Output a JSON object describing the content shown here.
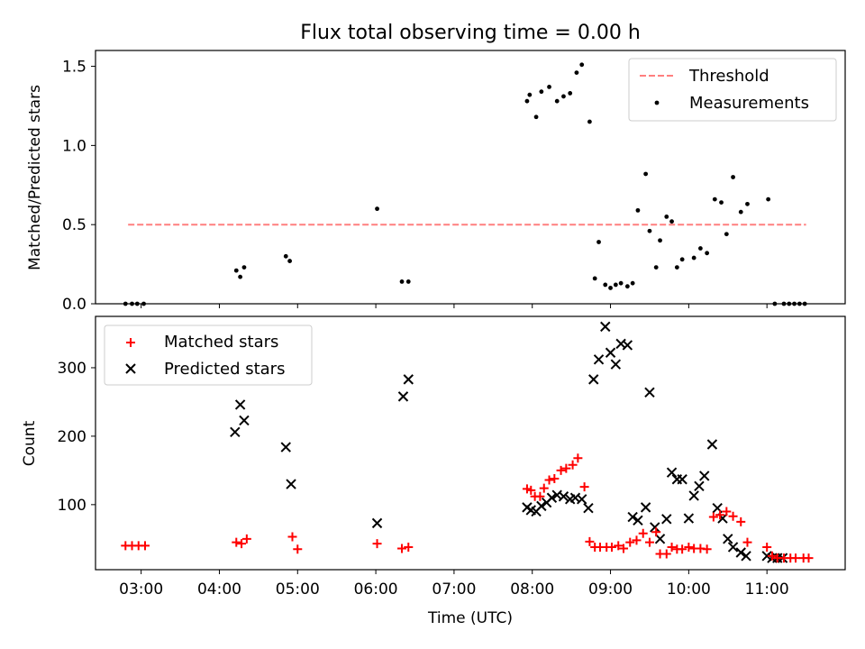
{
  "chart_data": [
    {
      "type": "scatter",
      "title": "Flux total observing time = 0.00 h",
      "ylabel": "Matched/Predicted stars",
      "ylim": [
        0,
        1.6
      ],
      "yticks": [
        0.0,
        0.5,
        1.0,
        1.5
      ],
      "ytick_labels": [
        "0.0",
        "0.5",
        "1.0",
        "1.5"
      ],
      "legend": "top-right",
      "threshold": {
        "name": "Threshold",
        "value": 0.5,
        "color": "#ff7f7f",
        "style": "dashed",
        "x_start": "02:50",
        "x_end": "11:30"
      },
      "series": [
        {
          "name": "Measurements",
          "color": "#000000",
          "marker": "dot",
          "x": [
            "02:48",
            "02:53",
            "02:57",
            "03:02",
            "04:13",
            "04:16",
            "04:19",
            "04:51",
            "04:54",
            "06:01",
            "06:20",
            "06:25",
            "07:56",
            "07:58",
            "08:03",
            "08:07",
            "08:13",
            "08:19",
            "08:24",
            "08:29",
            "08:34",
            "08:38",
            "08:44",
            "08:48",
            "08:51",
            "08:56",
            "09:00",
            "09:04",
            "09:08",
            "09:13",
            "09:17",
            "09:21",
            "09:27",
            "09:30",
            "09:35",
            "09:38",
            "09:43",
            "09:47",
            "09:51",
            "09:55",
            "10:04",
            "10:09",
            "10:14",
            "10:20",
            "10:25",
            "10:29",
            "10:34",
            "10:40",
            "10:45",
            "11:01",
            "11:06",
            "11:13",
            "11:17",
            "11:21",
            "11:25",
            "11:29"
          ],
          "y": [
            0.0,
            0.0,
            0.0,
            0.0,
            0.21,
            0.17,
            0.23,
            0.3,
            0.27,
            0.6,
            0.14,
            0.14,
            1.28,
            1.32,
            1.18,
            1.34,
            1.37,
            1.28,
            1.31,
            1.33,
            1.46,
            1.51,
            1.15,
            0.16,
            0.39,
            0.12,
            0.1,
            0.12,
            0.13,
            0.11,
            0.13,
            0.59,
            0.82,
            0.46,
            0.23,
            0.4,
            0.55,
            0.52,
            0.23,
            0.28,
            0.29,
            0.35,
            0.32,
            0.66,
            0.64,
            0.44,
            0.8,
            0.58,
            0.63,
            0.66,
            0.0,
            0.0,
            0.0,
            0.0,
            0.0,
            0.0
          ]
        }
      ]
    },
    {
      "type": "scatter",
      "xlabel": "Time (UTC)",
      "ylabel": "Count",
      "xlim": [
        "02:25",
        "12:00"
      ],
      "x_ticks": [
        "03:00",
        "04:00",
        "05:00",
        "06:00",
        "07:00",
        "08:00",
        "09:00",
        "10:00",
        "11:00"
      ],
      "ylim": [
        5,
        375
      ],
      "yticks": [
        100,
        200,
        300
      ],
      "ytick_labels": [
        "100",
        "200",
        "300"
      ],
      "legend": "top-left",
      "series": [
        {
          "name": "Matched stars",
          "color": "#ff0000",
          "marker": "plus",
          "x": [
            "02:48",
            "02:53",
            "02:58",
            "03:03",
            "04:13",
            "04:17",
            "04:21",
            "04:56",
            "05:00",
            "06:01",
            "06:20",
            "06:25",
            "07:56",
            "07:59",
            "08:02",
            "08:06",
            "08:09",
            "08:13",
            "08:17",
            "08:22",
            "08:26",
            "08:31",
            "08:35",
            "08:40",
            "08:44",
            "08:48",
            "08:52",
            "08:57",
            "09:01",
            "09:06",
            "09:10",
            "09:15",
            "09:20",
            "09:25",
            "09:30",
            "09:35",
            "09:38",
            "09:43",
            "09:47",
            "09:51",
            "09:55",
            "10:00",
            "10:04",
            "10:09",
            "10:14",
            "10:19",
            "10:24",
            "10:29",
            "10:34",
            "10:40",
            "10:45",
            "11:00",
            "11:04",
            "11:08",
            "11:13",
            "11:18",
            "11:22",
            "11:28",
            "11:32"
          ],
          "y": [
            40,
            40,
            40,
            40,
            45,
            43,
            50,
            53,
            35,
            43,
            36,
            38,
            123,
            121,
            112,
            112,
            124,
            136,
            138,
            150,
            153,
            158,
            168,
            126,
            46,
            38,
            38,
            38,
            38,
            40,
            36,
            45,
            48,
            58,
            45,
            60,
            28,
            28,
            38,
            35,
            35,
            38,
            36,
            36,
            35,
            82,
            85,
            90,
            83,
            75,
            45,
            38,
            25,
            22,
            22,
            22,
            22,
            22,
            22
          ]
        },
        {
          "name": "Predicted stars",
          "color": "#000000",
          "marker": "x",
          "x": [
            "04:12",
            "04:16",
            "04:19",
            "04:51",
            "04:55",
            "06:01",
            "06:21",
            "06:25",
            "07:56",
            "07:59",
            "08:03",
            "08:07",
            "08:11",
            "08:15",
            "08:19",
            "08:24",
            "08:29",
            "08:33",
            "08:38",
            "08:43",
            "08:47",
            "08:51",
            "08:56",
            "09:00",
            "09:04",
            "09:08",
            "09:13",
            "09:17",
            "09:21",
            "09:27",
            "09:30",
            "09:34",
            "09:38",
            "09:43",
            "09:47",
            "09:51",
            "09:55",
            "10:00",
            "10:04",
            "10:08",
            "10:12",
            "10:18",
            "10:22",
            "10:26",
            "10:30",
            "10:34",
            "10:40",
            "10:44",
            "11:00",
            "11:04",
            "11:08",
            "11:12"
          ],
          "y": [
            206,
            246,
            223,
            184,
            130,
            73,
            258,
            283,
            96,
            92,
            90,
            98,
            103,
            110,
            114,
            112,
            108,
            110,
            108,
            95,
            283,
            312,
            360,
            322,
            305,
            335,
            333,
            82,
            77,
            96,
            264,
            67,
            50,
            79,
            147,
            137,
            137,
            80,
            113,
            127,
            142,
            188,
            95,
            80,
            50,
            38,
            30,
            25,
            25,
            22,
            22,
            22
          ]
        }
      ]
    }
  ]
}
